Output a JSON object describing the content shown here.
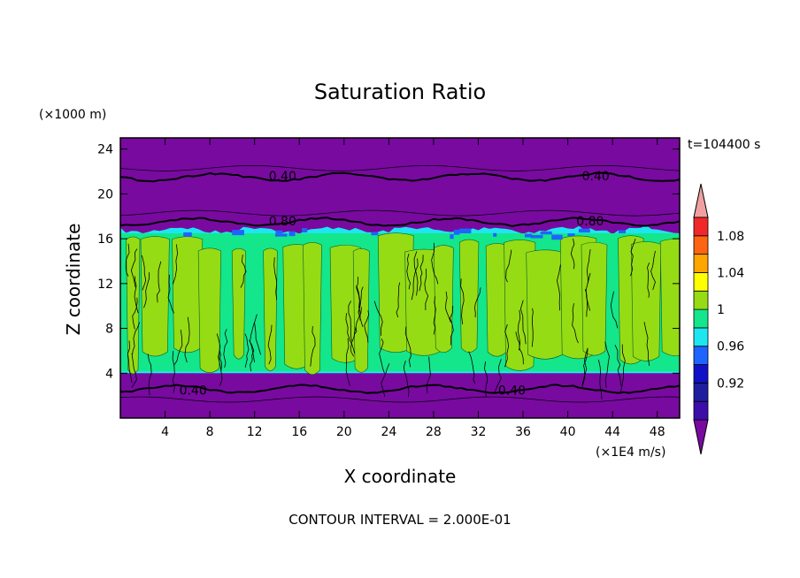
{
  "chart_data": {
    "type": "heatmap",
    "title": "Saturation Ratio",
    "xlabel": "X coordinate",
    "ylabel": "Z coordinate",
    "x_unit": "(×1E4 m/s)",
    "y_unit": "(×1000 m)",
    "time_label": "t=104400 s",
    "footer": "CONTOUR INTERVAL = 2.000E-01",
    "xlim": [
      0,
      50
    ],
    "ylim": [
      0,
      25
    ],
    "x_ticks": [
      4,
      8,
      12,
      16,
      20,
      24,
      28,
      32,
      36,
      40,
      44,
      48
    ],
    "y_ticks": [
      4,
      8,
      12,
      16,
      20,
      24
    ],
    "contour_labels": [
      {
        "text": "0.40",
        "x": 14.5,
        "y": 21.6
      },
      {
        "text": "0.40",
        "x": 42.5,
        "y": 21.6
      },
      {
        "text": "0.80",
        "x": 14.5,
        "y": 17.6
      },
      {
        "text": "0.80",
        "x": 42.0,
        "y": 17.6
      },
      {
        "text": "0.40",
        "x": 6.5,
        "y": 2.5
      },
      {
        "text": "0.40",
        "x": 35.0,
        "y": 2.5
      }
    ],
    "colorbar": {
      "levels": [
        {
          "label": "",
          "color": "#3b0fa8"
        },
        {
          "label": "0.92",
          "color": "#1e1e9e"
        },
        {
          "label": "",
          "color": "#1010c8"
        },
        {
          "label": "0.96",
          "color": "#1e64ff"
        },
        {
          "label": "",
          "color": "#1ee6f0"
        },
        {
          "label": "1",
          "color": "#14e68c"
        },
        {
          "label": "",
          "color": "#96dc14"
        },
        {
          "label": "1.04",
          "color": "#ffff00"
        },
        {
          "label": "",
          "color": "#ffa500"
        },
        {
          "label": "1.08",
          "color": "#ff6414"
        },
        {
          "label": "",
          "color": "#f02828"
        }
      ],
      "low_color": "#780aa0",
      "high_color": "#f0a0a0"
    },
    "regions": {
      "dry_color": "#780aa0",
      "cloud_color": "#14e68c",
      "supersat_color": "#96dc14",
      "edge_color": "#1ee6f0",
      "cloud_base": 4,
      "cloud_top": 16.8,
      "contour_levels": [
        {
          "level": "0.40",
          "z": 21.5
        },
        {
          "level": "0.80",
          "z": 17.5
        },
        {
          "level": "0.40",
          "z": 2.6
        }
      ]
    }
  }
}
